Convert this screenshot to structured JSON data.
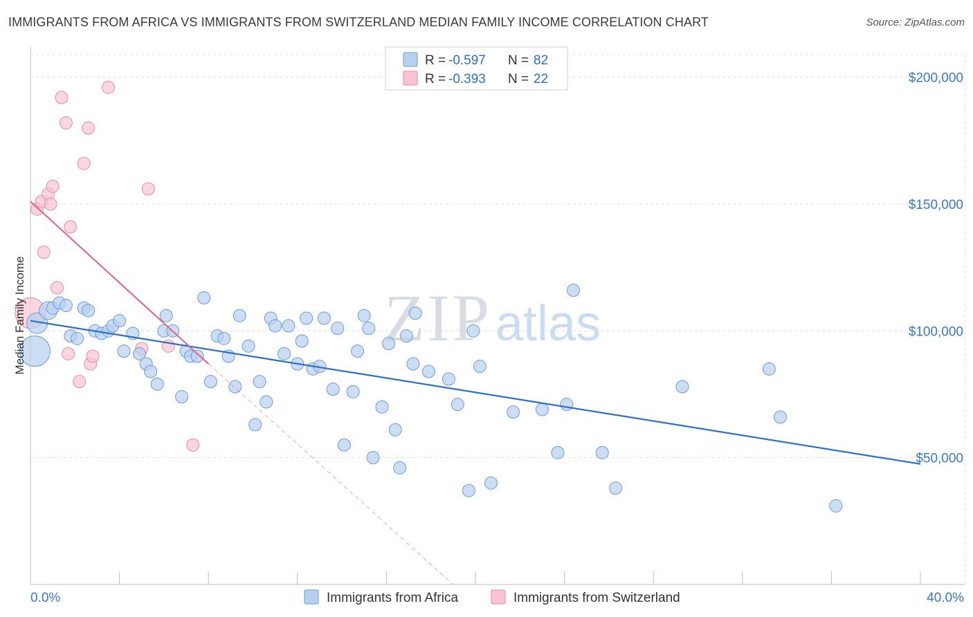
{
  "title": "IMMIGRANTS FROM AFRICA VS IMMIGRANTS FROM SWITZERLAND MEDIAN FAMILY INCOME CORRELATION CHART",
  "source": "Source: ZipAtlas.com",
  "watermark": {
    "zip": "ZIP",
    "atlas": "atlas"
  },
  "colors": {
    "africa_fill": "#b8d0f0",
    "africa_stroke": "#6a9ad8",
    "africa_line": "#2a6fcc",
    "swiss_fill": "#f8c4d2",
    "swiss_stroke": "#e88aa6",
    "swiss_line": "#e06a94",
    "axis_label": "#3a78c8",
    "grid": "#e0e0e0"
  },
  "legend_top": [
    {
      "r_label": "R = ",
      "r_value": "-0.597",
      "n_label": "N = ",
      "n_value": "82"
    },
    {
      "r_label": "R = ",
      "r_value": "-0.393",
      "n_label": "N = ",
      "n_value": "22"
    }
  ],
  "legend_bottom": [
    "Immigrants from Africa",
    "Immigrants from Switzerland"
  ],
  "chart_data": {
    "type": "scatter",
    "xlabel": "",
    "ylabel": "Median Family Income",
    "xlim": [
      0,
      40
    ],
    "ylim": [
      0,
      210000
    ],
    "x_tick_labels": [
      "0.0%",
      "40.0%"
    ],
    "y_ticks": [
      50000,
      100000,
      150000,
      200000
    ],
    "y_tick_labels": [
      "$50,000",
      "$100,000",
      "$150,000",
      "$200,000"
    ],
    "grid": true,
    "legend_position": "top-center",
    "series": [
      {
        "name": "Immigrants from Africa",
        "trend": {
          "x": [
            0,
            40
          ],
          "y": [
            104000,
            47500
          ]
        },
        "points": [
          {
            "x": 0.3,
            "y": 103000,
            "big": 2
          },
          {
            "x": 0.2,
            "y": 92000,
            "big": 3
          },
          {
            "x": 0.8,
            "y": 108000,
            "big": 1
          },
          {
            "x": 1.0,
            "y": 109000
          },
          {
            "x": 1.3,
            "y": 111000
          },
          {
            "x": 1.6,
            "y": 110000
          },
          {
            "x": 1.8,
            "y": 98000
          },
          {
            "x": 2.1,
            "y": 97000
          },
          {
            "x": 2.4,
            "y": 109000
          },
          {
            "x": 2.6,
            "y": 108000
          },
          {
            "x": 2.9,
            "y": 100000
          },
          {
            "x": 3.2,
            "y": 99000
          },
          {
            "x": 3.5,
            "y": 100000
          },
          {
            "x": 3.7,
            "y": 102000
          },
          {
            "x": 4.0,
            "y": 104000
          },
          {
            "x": 4.2,
            "y": 92000
          },
          {
            "x": 4.6,
            "y": 99000
          },
          {
            "x": 4.9,
            "y": 91000
          },
          {
            "x": 5.2,
            "y": 87000
          },
          {
            "x": 5.4,
            "y": 84000
          },
          {
            "x": 5.7,
            "y": 79000
          },
          {
            "x": 6.0,
            "y": 100000
          },
          {
            "x": 6.1,
            "y": 106000
          },
          {
            "x": 6.4,
            "y": 100000
          },
          {
            "x": 6.8,
            "y": 74000
          },
          {
            "x": 7.0,
            "y": 92000
          },
          {
            "x": 7.2,
            "y": 90000
          },
          {
            "x": 7.5,
            "y": 90000
          },
          {
            "x": 7.8,
            "y": 113000
          },
          {
            "x": 8.1,
            "y": 80000
          },
          {
            "x": 8.4,
            "y": 98000
          },
          {
            "x": 8.7,
            "y": 97000
          },
          {
            "x": 8.9,
            "y": 90000
          },
          {
            "x": 9.2,
            "y": 78000
          },
          {
            "x": 9.4,
            "y": 106000
          },
          {
            "x": 9.8,
            "y": 94000
          },
          {
            "x": 10.1,
            "y": 63000
          },
          {
            "x": 10.3,
            "y": 80000
          },
          {
            "x": 10.6,
            "y": 72000
          },
          {
            "x": 10.8,
            "y": 105000
          },
          {
            "x": 11.0,
            "y": 102000
          },
          {
            "x": 11.4,
            "y": 91000
          },
          {
            "x": 11.6,
            "y": 102000
          },
          {
            "x": 12.0,
            "y": 87000
          },
          {
            "x": 12.2,
            "y": 96000
          },
          {
            "x": 12.4,
            "y": 105000
          },
          {
            "x": 12.7,
            "y": 85000
          },
          {
            "x": 13.0,
            "y": 86000
          },
          {
            "x": 13.2,
            "y": 105000
          },
          {
            "x": 13.6,
            "y": 77000
          },
          {
            "x": 13.8,
            "y": 101000
          },
          {
            "x": 14.1,
            "y": 55000
          },
          {
            "x": 14.5,
            "y": 76000
          },
          {
            "x": 14.7,
            "y": 92000
          },
          {
            "x": 15.0,
            "y": 106000
          },
          {
            "x": 15.2,
            "y": 101000
          },
          {
            "x": 15.4,
            "y": 50000
          },
          {
            "x": 15.8,
            "y": 70000
          },
          {
            "x": 16.1,
            "y": 95000
          },
          {
            "x": 16.4,
            "y": 61000
          },
          {
            "x": 16.6,
            "y": 46000
          },
          {
            "x": 16.9,
            "y": 98000
          },
          {
            "x": 17.2,
            "y": 87000
          },
          {
            "x": 17.3,
            "y": 107000
          },
          {
            "x": 17.9,
            "y": 84000
          },
          {
            "x": 18.8,
            "y": 81000
          },
          {
            "x": 19.2,
            "y": 71000
          },
          {
            "x": 19.7,
            "y": 37000
          },
          {
            "x": 19.9,
            "y": 100000
          },
          {
            "x": 20.2,
            "y": 86000
          },
          {
            "x": 20.7,
            "y": 40000
          },
          {
            "x": 21.7,
            "y": 68000
          },
          {
            "x": 23.0,
            "y": 69000
          },
          {
            "x": 23.7,
            "y": 52000
          },
          {
            "x": 24.1,
            "y": 71000
          },
          {
            "x": 24.4,
            "y": 116000
          },
          {
            "x": 25.7,
            "y": 52000
          },
          {
            "x": 26.3,
            "y": 38000
          },
          {
            "x": 29.3,
            "y": 78000
          },
          {
            "x": 33.2,
            "y": 85000
          },
          {
            "x": 33.7,
            "y": 66000
          },
          {
            "x": 36.2,
            "y": 31000
          }
        ]
      },
      {
        "name": "Immigrants from Switzerland",
        "trend": {
          "x": [
            0,
            8
          ],
          "y": [
            151000,
            87000
          ]
        },
        "trend_dashed": {
          "x": [
            8,
            19
          ],
          "y": [
            87000,
            0
          ]
        },
        "points": [
          {
            "x": 0.0,
            "y": 107000,
            "big": 3
          },
          {
            "x": 0.3,
            "y": 148000
          },
          {
            "x": 0.5,
            "y": 151000
          },
          {
            "x": 0.6,
            "y": 131000
          },
          {
            "x": 0.8,
            "y": 154000
          },
          {
            "x": 0.9,
            "y": 150000
          },
          {
            "x": 1.0,
            "y": 157000
          },
          {
            "x": 1.2,
            "y": 117000
          },
          {
            "x": 1.4,
            "y": 192000
          },
          {
            "x": 1.6,
            "y": 182000
          },
          {
            "x": 1.8,
            "y": 141000
          },
          {
            "x": 1.7,
            "y": 91000
          },
          {
            "x": 2.2,
            "y": 80000
          },
          {
            "x": 2.4,
            "y": 166000
          },
          {
            "x": 2.6,
            "y": 180000
          },
          {
            "x": 2.7,
            "y": 87000
          },
          {
            "x": 2.8,
            "y": 90000
          },
          {
            "x": 3.5,
            "y": 196000
          },
          {
            "x": 5.0,
            "y": 93000
          },
          {
            "x": 5.3,
            "y": 156000
          },
          {
            "x": 6.2,
            "y": 94000
          },
          {
            "x": 7.3,
            "y": 55000
          }
        ]
      }
    ]
  }
}
